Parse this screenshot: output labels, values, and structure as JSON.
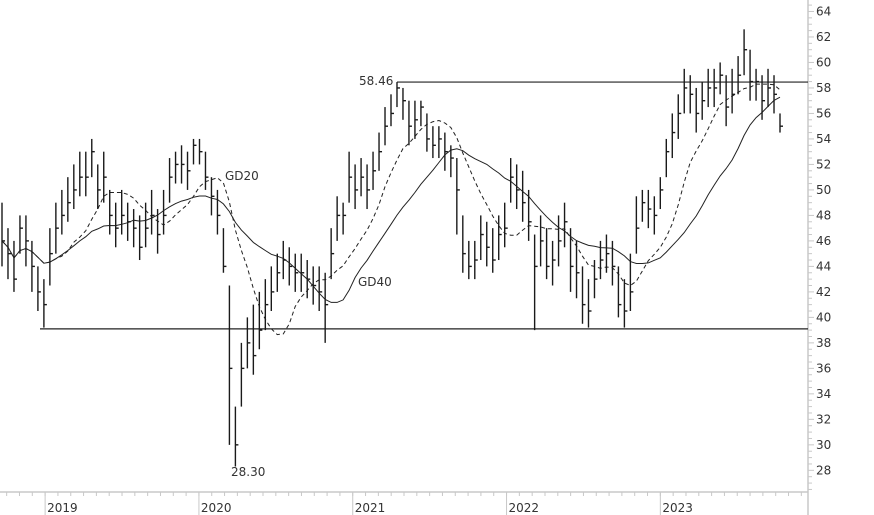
{
  "chart_data": {
    "type": "ohlc",
    "title": "",
    "xlabel": "",
    "ylabel": "",
    "ylim": [
      26.3,
      64.9
    ],
    "x_range": [
      "2018-09",
      "2023-12"
    ],
    "grid": false,
    "y_ticks": [
      28,
      30,
      32,
      34,
      36,
      38,
      40,
      42,
      44,
      46,
      48,
      50,
      52,
      54,
      56,
      58,
      60,
      62,
      64
    ],
    "x_ticks": [
      "2019",
      "2020",
      "2021",
      "2022",
      "2023"
    ],
    "series": {
      "close": [
        46,
        45,
        43,
        47,
        46,
        44,
        42,
        41,
        45,
        47,
        48,
        49,
        50,
        51,
        51,
        53,
        50,
        51,
        48,
        47,
        48,
        47.5,
        47,
        45.5,
        47,
        48,
        46.5,
        48,
        51,
        52,
        52,
        51.5,
        53.5,
        53,
        51,
        49.5,
        48,
        44,
        36,
        30,
        36,
        38,
        37,
        39,
        41,
        42,
        43.5,
        44.5,
        44,
        43.5,
        43.5,
        43,
        42.5,
        42,
        41,
        45,
        48,
        48,
        51,
        50,
        51,
        50,
        51.5,
        53,
        55,
        56,
        58,
        57,
        55,
        55.5,
        56.5,
        54,
        53.5,
        54,
        53,
        52.5,
        50,
        45,
        44,
        44.5,
        46.5,
        45.5,
        44.5,
        46.5,
        47,
        51,
        50,
        49,
        47.5,
        44,
        46,
        44,
        44.5,
        46,
        47.5,
        44,
        43.5,
        41,
        40.5,
        43,
        44.5,
        45,
        44,
        41,
        40.5,
        42,
        47,
        49,
        48.5,
        48,
        50,
        53,
        54.5,
        56,
        58,
        57.5,
        56,
        57,
        58,
        58,
        59,
        56.5,
        57.5,
        59,
        61,
        58.5,
        58.5,
        57,
        58,
        57.5,
        55
      ],
      "high": [
        49,
        47,
        46,
        48,
        48,
        46,
        44,
        43,
        47,
        49,
        50,
        51,
        52,
        53,
        53,
        54,
        52,
        53,
        50,
        49,
        50,
        49,
        48.5,
        48,
        49,
        50,
        48.5,
        50,
        52.5,
        53,
        53.5,
        53,
        54,
        54,
        53,
        51,
        50,
        47,
        42.5,
        33,
        38,
        40,
        41,
        42,
        43,
        44,
        45,
        46,
        45.5,
        45,
        45,
        44.5,
        44,
        44,
        43.5,
        47,
        49.5,
        49,
        53,
        52,
        52.5,
        52,
        53,
        54.5,
        56.5,
        57.5,
        58.46,
        58,
        57,
        57,
        57,
        56,
        55,
        55,
        54.5,
        53.5,
        52.5,
        48,
        46,
        46,
        48,
        47.5,
        47,
        48,
        49,
        52.5,
        52,
        51.5,
        50,
        46.5,
        48,
        47,
        46,
        48,
        49,
        47,
        46,
        44,
        43,
        44.5,
        46,
        46.5,
        46,
        44,
        43,
        45,
        49.5,
        50,
        50,
        49.5,
        51,
        54,
        56,
        57.5,
        59.5,
        59,
        58,
        58.5,
        59.5,
        59.5,
        60,
        59,
        59.5,
        60.5,
        62.6,
        61,
        59.5,
        59,
        59.5,
        59,
        56
      ],
      "low": [
        44,
        43,
        42,
        45,
        44,
        42,
        40.5,
        39.2,
        42.5,
        45,
        46.5,
        47.5,
        48.5,
        49.5,
        49.5,
        51,
        48.5,
        49,
        46.5,
        45.5,
        46.5,
        46,
        45.5,
        44.5,
        45.5,
        46.5,
        45,
        46.5,
        49,
        50.5,
        50.5,
        50,
        52,
        52,
        50,
        48,
        46.5,
        43.5,
        30,
        28.3,
        33,
        36,
        35.5,
        37.5,
        39,
        40.5,
        42,
        43,
        42.5,
        42,
        42,
        41.5,
        41,
        40.5,
        38,
        43,
        46,
        46.5,
        49,
        48.5,
        49.5,
        48.5,
        50,
        51.5,
        53.5,
        55,
        56.5,
        55.5,
        53.5,
        54,
        55,
        53,
        52.5,
        52.5,
        51.5,
        51,
        46.5,
        43.5,
        43,
        43,
        44.5,
        44,
        43.5,
        44.5,
        45.5,
        49,
        48.5,
        47.5,
        46,
        39,
        44,
        43,
        42.5,
        44,
        45.5,
        42,
        41.5,
        39.5,
        39.2,
        41.5,
        43,
        43.5,
        42.5,
        40,
        39.2,
        40.5,
        45,
        47.5,
        47,
        46.5,
        48.5,
        51,
        52.5,
        54,
        56,
        56,
        54.5,
        55.5,
        56.5,
        56.5,
        57.5,
        55,
        56,
        57.5,
        59,
        57,
        57,
        55.5,
        56.5,
        56,
        54.5
      ]
    },
    "moving_averages": [
      {
        "name": "GD20",
        "style": "dashed",
        "period_weeks": 20
      },
      {
        "name": "GD40",
        "style": "solid",
        "period_weeks": 40
      }
    ],
    "horizontal_lines": [
      {
        "value": 58.46,
        "label": "58.46"
      },
      {
        "value": 39.1
      }
    ],
    "annotations": {
      "high_label": "58.46",
      "low_label": "28.30",
      "gd20_label": "GD20",
      "gd40_label": "GD40"
    },
    "colors": {
      "bars": "#1a1a1a",
      "axis": "#c8c8c8",
      "text": "#333333"
    }
  }
}
